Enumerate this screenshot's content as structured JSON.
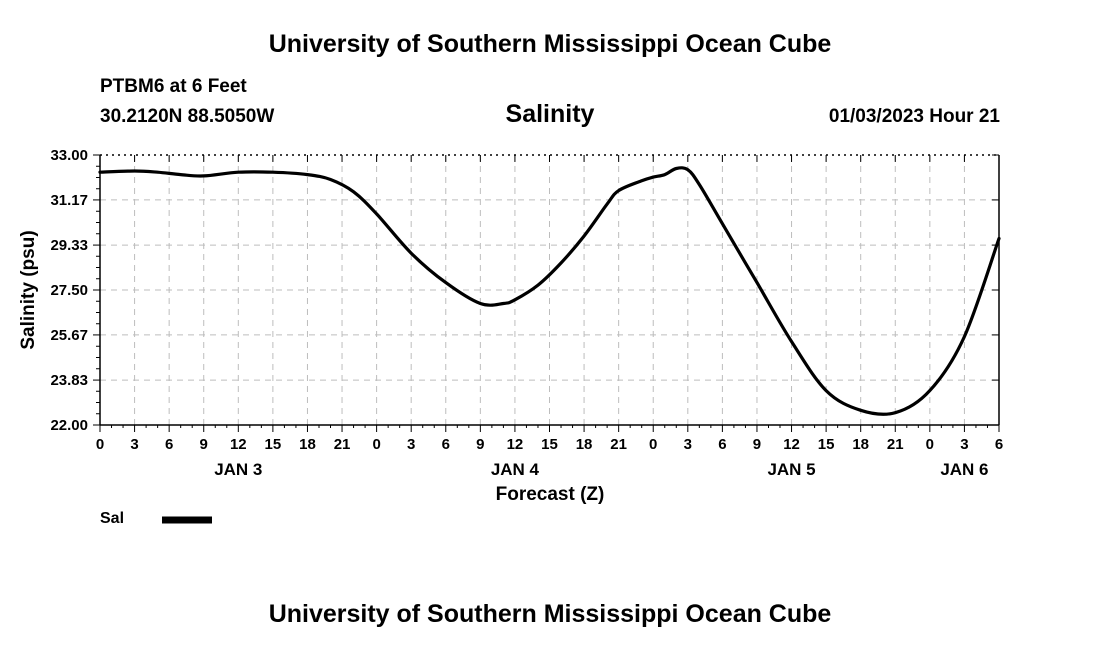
{
  "header": {
    "title": "University of Southern Mississippi Ocean Cube",
    "station": "PTBM6 at 6 Feet",
    "coordinates": "30.2120N  88.5050W",
    "variable": "Salinity",
    "datetime": "01/03/2023 Hour 21"
  },
  "footer": {
    "title": "University of Southern Mississippi Ocean Cube"
  },
  "legend": {
    "label": "Sal"
  },
  "chart_data": {
    "type": "line",
    "title": "Salinity",
    "xlabel": "Forecast (Z)",
    "ylabel": "Salinity (psu)",
    "ylim": [
      22.0,
      33.0
    ],
    "xlim": [
      0,
      78
    ],
    "yticks": [
      "22.00",
      "23.83",
      "25.67",
      "27.50",
      "29.33",
      "31.17",
      "33.00"
    ],
    "xtick_labels": [
      "0",
      "3",
      "6",
      "9",
      "12",
      "15",
      "18",
      "21",
      "0",
      "3",
      "6",
      "9",
      "12",
      "15",
      "18",
      "21",
      "0",
      "3",
      "6",
      "9",
      "12",
      "15",
      "18",
      "21",
      "0",
      "3",
      "6"
    ],
    "day_labels": [
      {
        "label": "JAN 3",
        "hour": 12
      },
      {
        "label": "JAN 4",
        "hour": 36
      },
      {
        "label": "JAN 5",
        "hour": 60
      },
      {
        "label": "JAN 6",
        "hour": 75
      }
    ],
    "grid": true,
    "series": [
      {
        "name": "Sal",
        "color": "#000000",
        "x": [
          0,
          3,
          5,
          7,
          9,
          12,
          15,
          18,
          20,
          22,
          24,
          27,
          30,
          33,
          35,
          36,
          38,
          40,
          42,
          44,
          45,
          47,
          48,
          49,
          50,
          51,
          52,
          54,
          57,
          60,
          63,
          66,
          69,
          72,
          75,
          78
        ],
        "values": [
          32.3,
          32.35,
          32.3,
          32.2,
          32.15,
          32.3,
          32.3,
          32.2,
          32.0,
          31.5,
          30.6,
          29.0,
          27.8,
          26.95,
          26.95,
          27.1,
          27.7,
          28.6,
          29.7,
          31.0,
          31.55,
          31.95,
          32.1,
          32.2,
          32.45,
          32.4,
          31.8,
          30.2,
          27.8,
          25.4,
          23.4,
          22.6,
          22.5,
          23.4,
          25.6,
          29.6
        ]
      }
    ]
  }
}
